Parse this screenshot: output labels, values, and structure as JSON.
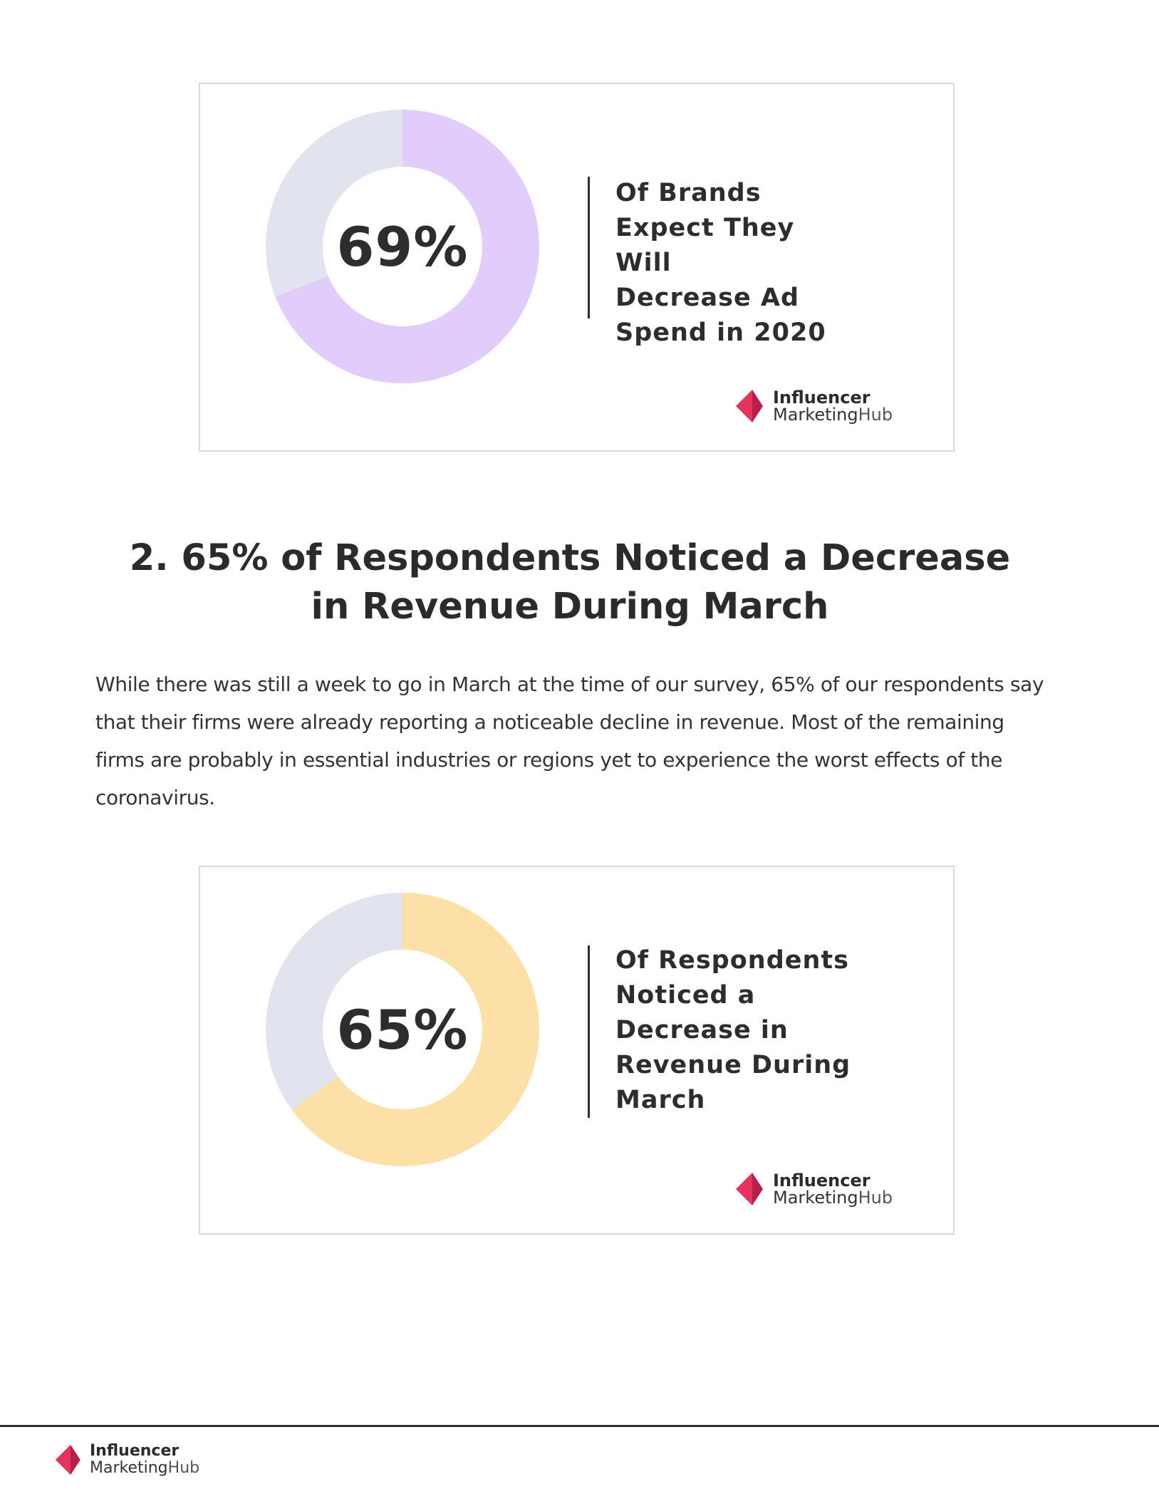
{
  "colors": {
    "track": "#e1e4ee",
    "chart_1_fill": "#e2ccfc",
    "chart_2_fill": "#fde0a8",
    "logo_pink": "#e3345f",
    "logo_dark_pink": "#b81f49",
    "text": "#2b2b2b"
  },
  "chart_data": [
    {
      "type": "pie",
      "values": [
        69,
        31
      ],
      "categories": [
        "69%",
        ""
      ],
      "center_label": "69%",
      "title": "Of Brands Expect They Will Decrease Ad Spend in 2020"
    },
    {
      "type": "pie",
      "values": [
        65,
        35
      ],
      "categories": [
        "65%",
        ""
      ],
      "center_label": "65%",
      "title": "Of Respondents Noticed a Decrease in Revenue During March"
    }
  ],
  "stat_1": {
    "value_label": "69%",
    "caption_lines": [
      "Of Brands",
      "Expect They Will",
      "Decrease Ad",
      "Spend in 2020"
    ]
  },
  "stat_2": {
    "value_label": "65%",
    "caption_lines": [
      "Of Respondents",
      "Noticed a",
      "Decrease in",
      "Revenue During",
      "March"
    ]
  },
  "logo": {
    "word_1": "Influencer",
    "word_2_a": "Marketing",
    "word_2_b": "Hub",
    "icon": "influencer-marketing-hub-logo-icon"
  },
  "section": {
    "heading_lines": [
      "2. 65% of Respondents Noticed a Decrease",
      "in Revenue During March"
    ],
    "body_lines": [
      "While there was still a week to go in March at the time of our survey, 65% of our respondents say",
      "that their firms were already reporting a noticeable decline in revenue. Most of the remaining",
      "firms are probably in essential industries or regions yet to experience the worst effects of the",
      "coronavirus."
    ]
  }
}
